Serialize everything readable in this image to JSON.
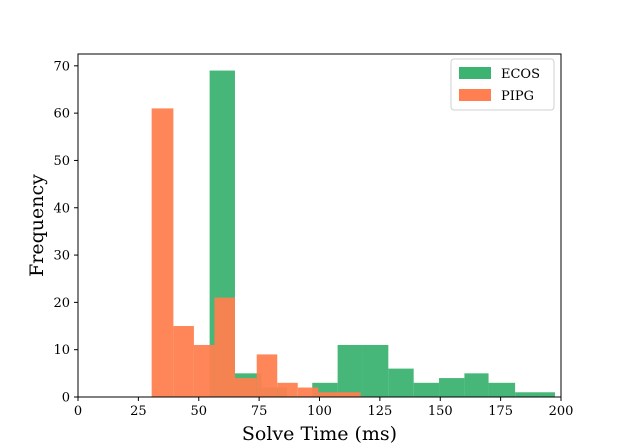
{
  "chart_data": {
    "type": "histogram",
    "xlabel": "Solve Time (ms)",
    "ylabel": "Frequency",
    "xlim": [
      0,
      200
    ],
    "ylim": [
      0,
      72.5
    ],
    "x_ticks": [
      0,
      25,
      50,
      75,
      100,
      125,
      150,
      175,
      200
    ],
    "y_ticks": [
      0,
      10,
      20,
      30,
      40,
      50,
      60,
      70
    ],
    "grid": false,
    "legend_position": "top-right",
    "series": [
      {
        "name": "ECOS",
        "color": "#3cb371",
        "bins": [
          {
            "x0": 54.5,
            "x1": 65,
            "count": 69
          },
          {
            "x0": 65,
            "x1": 76,
            "count": 5
          },
          {
            "x0": 76,
            "x1": 86.5,
            "count": 2
          },
          {
            "x0": 86.5,
            "x1": 97,
            "count": 0
          },
          {
            "x0": 97,
            "x1": 107.5,
            "count": 3
          },
          {
            "x0": 107.5,
            "x1": 118,
            "count": 11
          },
          {
            "x0": 118,
            "x1": 128.5,
            "count": 11
          },
          {
            "x0": 128.5,
            "x1": 139,
            "count": 6
          },
          {
            "x0": 139,
            "x1": 149.5,
            "count": 3
          },
          {
            "x0": 149.5,
            "x1": 160,
            "count": 4
          },
          {
            "x0": 160,
            "x1": 170,
            "count": 5
          },
          {
            "x0": 170,
            "x1": 181,
            "count": 3
          },
          {
            "x0": 181,
            "x1": 191.5,
            "count": 1
          },
          {
            "x0": 191.5,
            "x1": 197.5,
            "count": 1
          }
        ]
      },
      {
        "name": "PIPG",
        "color": "#ff7f50",
        "bins": [
          {
            "x0": 30.5,
            "x1": 39.5,
            "count": 61
          },
          {
            "x0": 39.5,
            "x1": 48,
            "count": 15
          },
          {
            "x0": 48,
            "x1": 56.5,
            "count": 11
          },
          {
            "x0": 56.5,
            "x1": 65,
            "count": 21
          },
          {
            "x0": 65,
            "x1": 74,
            "count": 4
          },
          {
            "x0": 74,
            "x1": 82.5,
            "count": 9
          },
          {
            "x0": 82.5,
            "x1": 91,
            "count": 3
          },
          {
            "x0": 91,
            "x1": 99.5,
            "count": 2
          },
          {
            "x0": 99.5,
            "x1": 108.5,
            "count": 1
          },
          {
            "x0": 108.5,
            "x1": 117,
            "count": 1
          }
        ]
      }
    ]
  }
}
